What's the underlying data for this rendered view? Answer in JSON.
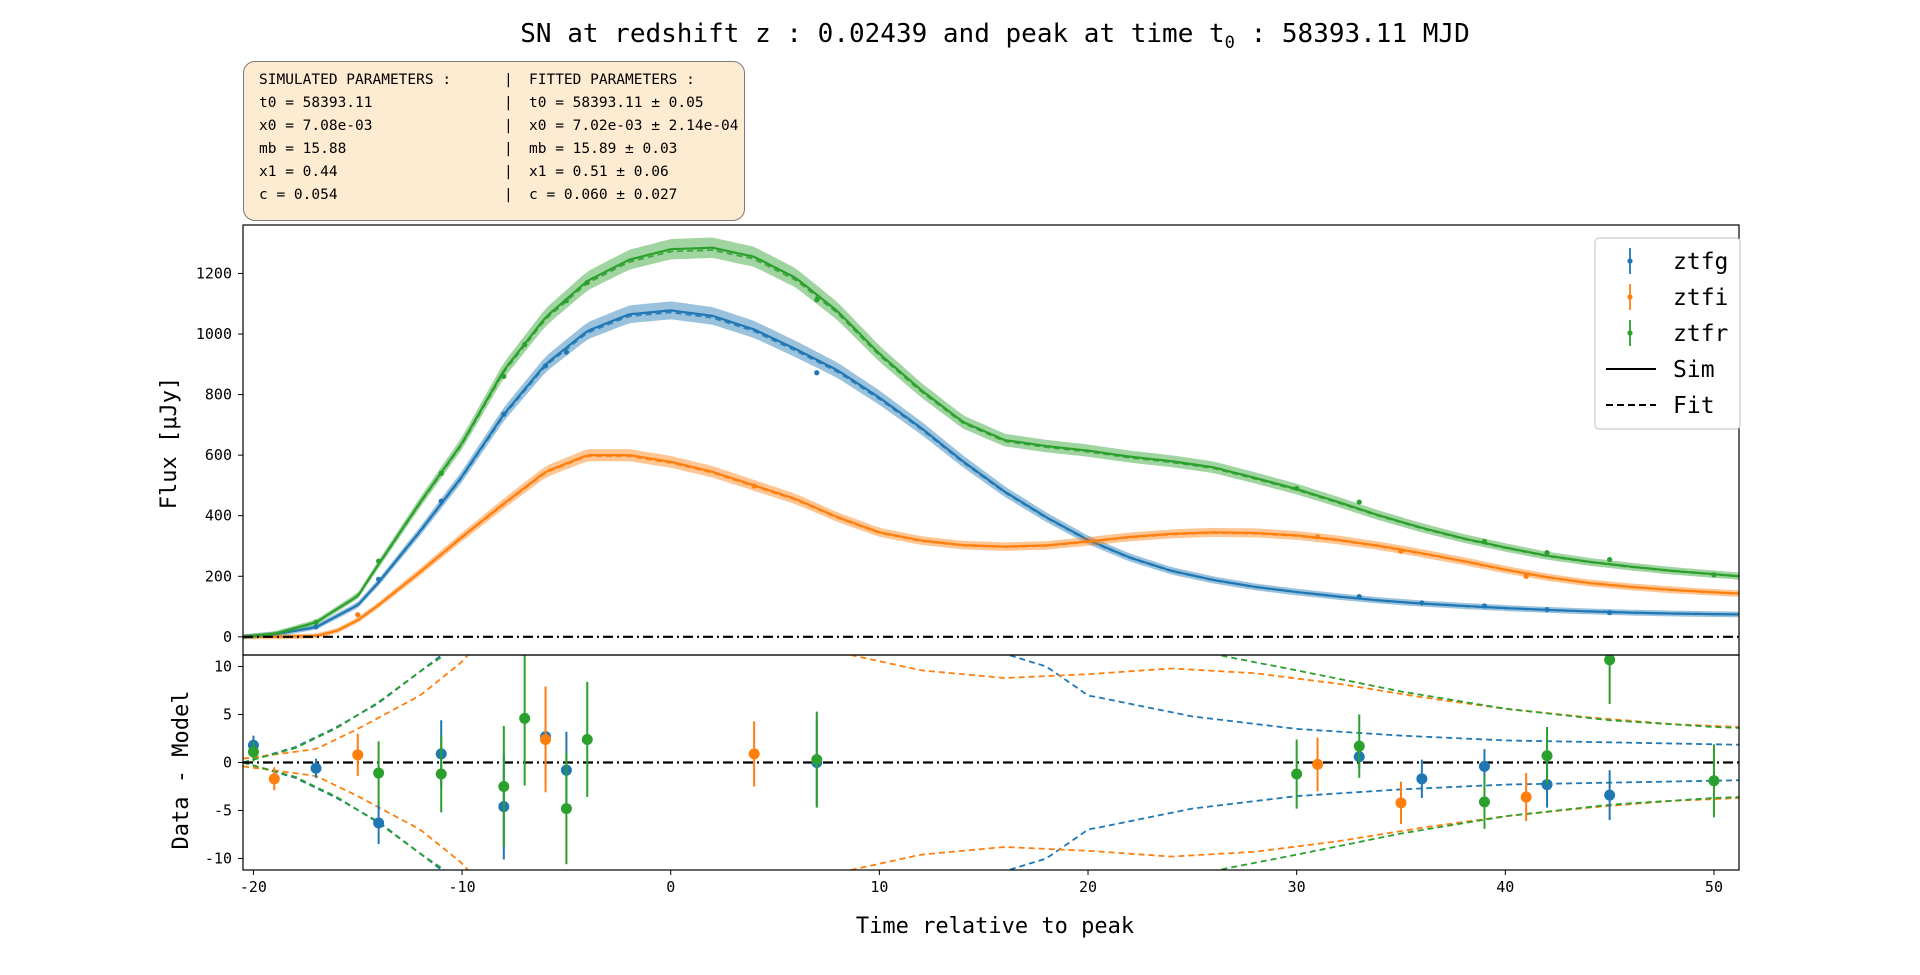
{
  "title_main": "SN at redshift z : 0.02439 and peak at time t",
  "title_sub": "0",
  "title_tail": " : 58393.11 MJD",
  "params": {
    "sim_header": "SIMULATED PARAMETERS :",
    "fit_header": "FITTED PARAMETERS :",
    "separator": "|",
    "rows": [
      {
        "sim": "t0 = 58393.11",
        "fit": "t0 = 58393.11 ± 0.05"
      },
      {
        "sim": "x0 = 7.08e-03",
        "fit": "x0 = 7.02e-03 ± 2.14e-04"
      },
      {
        "sim": "mb = 15.88",
        "fit": "mb = 15.89 ± 0.03"
      },
      {
        "sim": "x1 = 0.44",
        "fit": "x1 = 0.51 ± 0.06"
      },
      {
        "sim": "c = 0.054",
        "fit": "c = 0.060 ± 0.027"
      }
    ]
  },
  "colors": {
    "ztfg": "#1f77b4",
    "ztfi": "#ff7f0e",
    "ztfr": "#2ca02c"
  },
  "chart_data": [
    {
      "type": "line",
      "panel": "top",
      "ylabel": "Flux [μJy]",
      "xlim": [
        -20.5,
        51.2
      ],
      "ylim": [
        -60,
        1360
      ],
      "yticks": [
        0,
        200,
        400,
        600,
        800,
        1000,
        1200
      ],
      "legend": {
        "position": "top-right",
        "entries": [
          "ztfg",
          "ztfi",
          "ztfr",
          "Sim",
          "Fit"
        ]
      },
      "series": [
        {
          "name": "ztfg",
          "color": "#1f77b4",
          "curve_x": [
            -20.5,
            -19,
            -17,
            -15,
            -14,
            -12,
            -10,
            -8,
            -6,
            -4,
            -2,
            0,
            2,
            4,
            6,
            8,
            10,
            12,
            14,
            16,
            18,
            20,
            22,
            24,
            26,
            28,
            30,
            32,
            34,
            36,
            38,
            40,
            42,
            44,
            46,
            48,
            50,
            51.2
          ],
          "curve_y": [
            0,
            8,
            32,
            105,
            180,
            350,
            530,
            735,
            900,
            1010,
            1065,
            1078,
            1060,
            1015,
            950,
            880,
            790,
            690,
            580,
            480,
            395,
            320,
            262,
            218,
            188,
            165,
            148,
            133,
            120,
            110,
            102,
            95,
            89,
            84,
            80,
            77,
            75,
            74
          ],
          "points_x": [
            -17,
            -14,
            -11,
            -8,
            -6,
            -5,
            7,
            33,
            36,
            39,
            42,
            45
          ],
          "points_y": [
            33,
            190,
            448,
            735,
            895,
            940,
            872,
            133,
            112,
            102,
            90,
            80
          ]
        },
        {
          "name": "ztfi",
          "color": "#ff7f0e",
          "curve_x": [
            -20.5,
            -19,
            -17,
            -16,
            -15,
            -14,
            -12,
            -10,
            -8,
            -6,
            -4,
            -2,
            0,
            2,
            4,
            6,
            8,
            10,
            12,
            14,
            16,
            18,
            20,
            22,
            24,
            26,
            28,
            30,
            32,
            34,
            36,
            38,
            40,
            42,
            44,
            46,
            48,
            50,
            51.2
          ],
          "curve_y": [
            0,
            0,
            3,
            20,
            55,
            105,
            215,
            330,
            440,
            545,
            600,
            600,
            578,
            545,
            500,
            455,
            395,
            345,
            318,
            303,
            298,
            302,
            315,
            330,
            340,
            345,
            343,
            335,
            320,
            300,
            276,
            250,
            222,
            197,
            178,
            165,
            155,
            147,
            143
          ],
          "points_x": [
            -15,
            4,
            31,
            35,
            41
          ],
          "points_y": [
            73,
            498,
            330,
            283,
            200
          ]
        },
        {
          "name": "ztfr",
          "color": "#2ca02c",
          "curve_x": [
            -20.5,
            -19,
            -17,
            -15,
            -14,
            -12,
            -10,
            -8,
            -6,
            -4,
            -2,
            0,
            2,
            4,
            6,
            8,
            10,
            12,
            14,
            16,
            18,
            20,
            22,
            24,
            26,
            28,
            30,
            32,
            34,
            36,
            38,
            40,
            42,
            44,
            46,
            48,
            50,
            51.2
          ],
          "curve_y": [
            0,
            10,
            48,
            135,
            240,
            445,
            640,
            880,
            1055,
            1175,
            1245,
            1280,
            1285,
            1255,
            1185,
            1075,
            935,
            815,
            710,
            650,
            630,
            615,
            595,
            580,
            560,
            525,
            488,
            445,
            400,
            360,
            325,
            295,
            268,
            248,
            232,
            218,
            207,
            200
          ],
          "points_x": [
            -17,
            -14,
            -11,
            -8,
            -7,
            -5,
            -4,
            7,
            30,
            33,
            39,
            42,
            45,
            50
          ],
          "points_y": [
            48,
            250,
            540,
            860,
            965,
            1110,
            1170,
            1113,
            490,
            445,
            315,
            278,
            255,
            205
          ]
        }
      ]
    },
    {
      "type": "scatter",
      "panel": "bottom",
      "xlabel": "Time relative to peak",
      "ylabel": "Data - Model",
      "xlim": [
        -20.5,
        51.2
      ],
      "ylim": [
        -11.2,
        11.2
      ],
      "xticks": [
        -20,
        -10,
        0,
        10,
        20,
        30,
        40,
        50
      ],
      "yticks": [
        -10,
        -5,
        0,
        5,
        10
      ],
      "series": [
        {
          "name": "ztfg",
          "color": "#1f77b4",
          "x": [
            -20,
            -17,
            -14,
            -11,
            -8,
            -6,
            -5,
            7,
            33,
            36,
            39,
            42,
            45
          ],
          "y": [
            1.8,
            -0.6,
            -6.3,
            0.9,
            -4.6,
            2.7,
            -0.8,
            0.0,
            0.6,
            -1.7,
            -0.4,
            -2.3,
            -3.4
          ],
          "err": [
            1.0,
            1.0,
            2.2,
            3.5,
            5.5,
            5.2,
            4.0,
            4.5,
            1.2,
            2.0,
            1.8,
            2.4,
            2.6
          ],
          "env_x": [
            -20.5,
            -18,
            -16,
            -14,
            -12,
            -10.5,
            15,
            18,
            20,
            25,
            30,
            35,
            40,
            45,
            50,
            51.2
          ],
          "env_u": [
            0,
            1.6,
            3.7,
            6.2,
            9.5,
            12,
            12,
            10,
            7,
            4.8,
            3.5,
            2.8,
            2.3,
            2.1,
            1.9,
            1.85
          ]
        },
        {
          "name": "ztfi",
          "color": "#ff7f0e",
          "x": [
            -19,
            -15,
            -6,
            4,
            31,
            35,
            41
          ],
          "y": [
            -1.7,
            0.8,
            2.4,
            0.9,
            -0.2,
            -4.2,
            -3.6
          ],
          "err": [
            1.2,
            2.2,
            5.5,
            3.4,
            2.8,
            2.2,
            2.5
          ],
          "env_x": [
            -20.5,
            -17,
            -15,
            -12,
            -10,
            -9.4,
            8,
            12,
            16,
            20,
            24,
            28,
            32,
            36,
            40,
            44,
            48,
            51.2
          ],
          "env_u": [
            0.4,
            1.4,
            3.5,
            7,
            10.5,
            12,
            11.5,
            9.6,
            8.8,
            9.2,
            9.8,
            9.3,
            8.2,
            6.8,
            5.6,
            4.7,
            4.0,
            3.7
          ]
        },
        {
          "name": "ztfr",
          "color": "#2ca02c",
          "x": [
            -20,
            -14,
            -11,
            -8,
            -7,
            -5,
            -4,
            7,
            30,
            33,
            39,
            42,
            45,
            50
          ],
          "y": [
            1.1,
            -1.1,
            -1.2,
            -2.5,
            4.6,
            -4.8,
            2.4,
            0.3,
            -1.2,
            1.7,
            -4.1,
            0.7,
            10.7,
            -1.9
          ],
          "err": [
            1.0,
            3.3,
            4.0,
            6.3,
            7.0,
            5.8,
            6.0,
            5.0,
            3.6,
            3.3,
            2.8,
            3.0,
            4.6,
            3.8
          ],
          "env_x": [
            -20.5,
            -18,
            -16,
            -14,
            -12,
            -10.3,
            23,
            26,
            30,
            35,
            40,
            45,
            50,
            51.2
          ],
          "env_u": [
            0,
            1.5,
            3.6,
            6.3,
            9.5,
            12,
            12,
            11.3,
            9.6,
            7.4,
            5.6,
            4.4,
            3.7,
            3.6
          ]
        }
      ]
    }
  ],
  "legend_labels": {
    "g": "ztfg",
    "i": "ztfi",
    "r": "ztfr",
    "sim": "Sim",
    "fit": "Fit"
  },
  "axes_text": {
    "ylabel_top": "Flux [μJy]",
    "ylabel_bottom": "Data - Model",
    "xlabel": "Time relative to peak"
  }
}
